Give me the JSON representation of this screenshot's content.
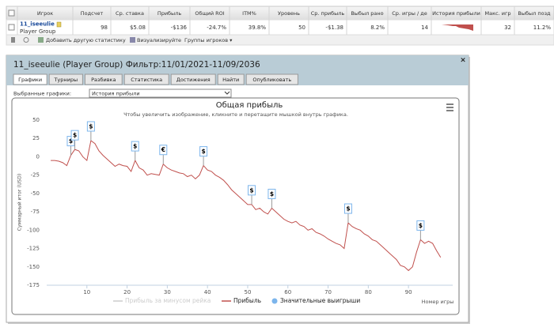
{
  "table": {
    "headers": [
      "Игрок",
      "Подсчет",
      "Ср. ставка",
      "Прибыль",
      "Общий ROI",
      "ITM%",
      "Уровень",
      "Ср. прибыль",
      "Выбыл рано",
      "Ср. игры / де",
      "История прибыли",
      "Макс. игр",
      "Выбыл позд"
    ],
    "row": {
      "player": "11_iseeulie",
      "group": "Player Group",
      "cells": [
        "98",
        "$5.08",
        "-$136",
        "-24.7%",
        "39.8%",
        "50",
        "-$1.38",
        "8.2%",
        "14",
        "32",
        "11.2%"
      ]
    }
  },
  "toolbar": [
    "Добавить другую статистику",
    "Визуализируйте",
    "Группы игроков ▾"
  ],
  "panel": {
    "title": "11_iseeulie (Player Group) Фильтр:11/01/2021-11/09/2036",
    "close": "×",
    "tabs": [
      "Графики",
      "Турниры",
      "Разбивка",
      "Статистика",
      "Достижения",
      "Найти",
      "Опубликовать"
    ],
    "selected_label": "Выбранные графики:",
    "selected_value": "История прибыли"
  },
  "chart_data": {
    "type": "line",
    "title": "Общая прибыль",
    "subtitle": "Чтобы увеличить изображение, кликните и перетащите мышкой внутрь графика.",
    "ylabel": "Суммарный итог (USD)",
    "xlabel": "Номер игры",
    "xlim": [
      0,
      101
    ],
    "xticks": [
      10,
      20,
      30,
      40,
      50,
      60,
      70,
      80,
      90
    ],
    "ylim": [
      -175,
      50
    ],
    "yticks": [
      50,
      25,
      0,
      -25,
      -50,
      -75,
      -100,
      -125,
      -150,
      -175
    ],
    "grid": false,
    "disabled_series": [
      {
        "name": "Прибыль за минусом рейка",
        "color": "#cccccc"
      }
    ],
    "series": [
      {
        "name": "Прибыль",
        "color": "#c0504d",
        "x": [
          1,
          2,
          3,
          4,
          5,
          6,
          7,
          8,
          9,
          10,
          11,
          12,
          13,
          14,
          15,
          16,
          17,
          18,
          19,
          20,
          21,
          22,
          23,
          24,
          25,
          26,
          27,
          28,
          29,
          30,
          31,
          32,
          33,
          34,
          35,
          36,
          37,
          38,
          39,
          40,
          41,
          42,
          43,
          44,
          45,
          46,
          47,
          48,
          49,
          50,
          51,
          52,
          53,
          54,
          55,
          56,
          57,
          58,
          59,
          60,
          61,
          62,
          63,
          64,
          65,
          66,
          67,
          68,
          69,
          70,
          71,
          72,
          73,
          74,
          75,
          76,
          77,
          78,
          79,
          80,
          81,
          82,
          83,
          84,
          85,
          86,
          87,
          88,
          89,
          90,
          91,
          92,
          93,
          94,
          95,
          96,
          97,
          98
        ],
        "values": [
          -5,
          -5,
          -6,
          -8,
          -12,
          2,
          10,
          8,
          0,
          -5,
          22,
          18,
          8,
          2,
          -3,
          -8,
          -13,
          -10,
          -12,
          -13,
          -20,
          -5,
          -15,
          -18,
          -25,
          -23,
          -24,
          -25,
          -10,
          -15,
          -18,
          -20,
          -22,
          -23,
          -27,
          -25,
          -30,
          -25,
          -12,
          -18,
          -20,
          -25,
          -28,
          -32,
          -38,
          -45,
          -50,
          -55,
          -60,
          -65,
          -65,
          -72,
          -70,
          -75,
          -78,
          -70,
          -75,
          -80,
          -85,
          -88,
          -90,
          -88,
          -93,
          -95,
          -100,
          -98,
          -103,
          -105,
          -108,
          -112,
          -115,
          -118,
          -120,
          -125,
          -90,
          -95,
          -98,
          -100,
          -105,
          -108,
          -113,
          -115,
          -120,
          -125,
          -130,
          -135,
          -140,
          -148,
          -150,
          -155,
          -150,
          -130,
          -113,
          -118,
          -115,
          -118,
          -128,
          -137
        ]
      }
    ],
    "flags": {
      "name": "Значительные выигрыши",
      "color": "#7cb5ec",
      "x": [
        6,
        7,
        11,
        22,
        29,
        39,
        51,
        56,
        75,
        93
      ],
      "values": [
        2,
        10,
        22,
        -5,
        -10,
        -12,
        -65,
        -70,
        -90,
        -113
      ],
      "labels": [
        "$",
        "$",
        "$",
        "$",
        "€",
        "$",
        "$",
        "$",
        "$",
        "$"
      ]
    }
  }
}
